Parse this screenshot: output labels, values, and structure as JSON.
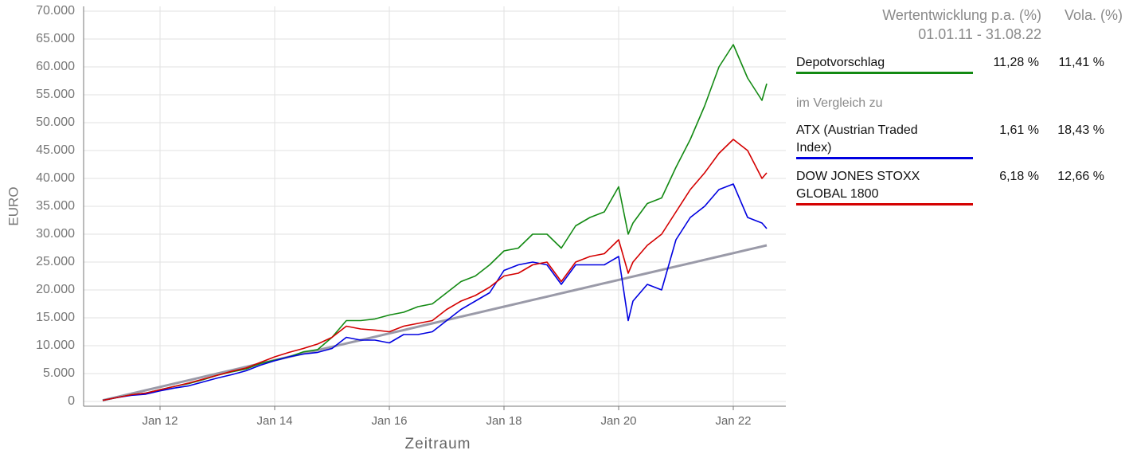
{
  "chart_data": {
    "type": "line",
    "y_label": "EURO",
    "x_label": "Zeitraum",
    "x": [
      "2011-01",
      "2011-04",
      "2011-07",
      "2011-10",
      "2012-01",
      "2012-04",
      "2012-07",
      "2012-10",
      "2013-01",
      "2013-04",
      "2013-07",
      "2013-10",
      "2014-01",
      "2014-04",
      "2014-07",
      "2014-10",
      "2015-01",
      "2015-04",
      "2015-07",
      "2015-10",
      "2016-01",
      "2016-04",
      "2016-07",
      "2016-10",
      "2017-01",
      "2017-04",
      "2017-07",
      "2017-10",
      "2018-01",
      "2018-04",
      "2018-07",
      "2018-10",
      "2019-01",
      "2019-04",
      "2019-07",
      "2019-10",
      "2020-01",
      "2020-03",
      "2020-04",
      "2020-07",
      "2020-10",
      "2021-01",
      "2021-04",
      "2021-07",
      "2021-10",
      "2022-01",
      "2022-04",
      "2022-07",
      "2022-08"
    ],
    "series": [
      {
        "color": "#9a9aa8",
        "values": [
          200,
          800,
          1400,
          2000,
          2600,
          3200,
          3800,
          4400,
          5000,
          5600,
          6200,
          6800,
          7400,
          8000,
          8600,
          9200,
          9800,
          10400,
          11000,
          11600,
          12200,
          12800,
          13400,
          14000,
          14600,
          15200,
          15800,
          16400,
          17000,
          17600,
          18200,
          18800,
          19400,
          20000,
          20600,
          21200,
          21800,
          22200,
          22400,
          23000,
          23600,
          24200,
          24800,
          25400,
          26000,
          26600,
          27200,
          27800,
          28000
        ]
      },
      {
        "name": "Depotvorschlag",
        "color": "#138a13",
        "values": [
          200,
          700,
          1200,
          1500,
          2100,
          2700,
          3200,
          3900,
          4700,
          5300,
          5800,
          6800,
          7400,
          8000,
          8900,
          9300,
          11500,
          14500,
          14500,
          14800,
          15500,
          16000,
          17000,
          17500,
          19500,
          21500,
          22500,
          24500,
          27000,
          27500,
          30000,
          30000,
          27500,
          31500,
          33000,
          34000,
          38500,
          30000,
          32000,
          35500,
          36500,
          42000,
          47000,
          53000,
          60000,
          64000,
          58000,
          54000,
          57000
        ]
      },
      {
        "name": "ATX (Austrian Traded Index)",
        "color": "#0000e0",
        "values": [
          200,
          700,
          1100,
          1300,
          1900,
          2400,
          2800,
          3500,
          4200,
          4800,
          5500,
          6500,
          7300,
          8000,
          8500,
          8800,
          9500,
          11500,
          11000,
          11000,
          10500,
          12000,
          12000,
          12500,
          14500,
          16500,
          18000,
          19500,
          23500,
          24500,
          25000,
          24500,
          21000,
          24500,
          24500,
          24500,
          26000,
          14500,
          18000,
          21000,
          20000,
          29000,
          33000,
          35000,
          38000,
          39000,
          33000,
          32000,
          31000
        ]
      },
      {
        "name": "DOW JONES STOXX GLOBAL 1800",
        "color": "#d40000",
        "values": [
          200,
          700,
          1200,
          1500,
          2100,
          2700,
          3300,
          4000,
          4700,
          5400,
          6000,
          7000,
          8000,
          8800,
          9500,
          10300,
          11500,
          13500,
          13000,
          12800,
          12500,
          13500,
          14000,
          14500,
          16500,
          18000,
          19000,
          20500,
          22500,
          23000,
          24500,
          25000,
          21500,
          25000,
          26000,
          26500,
          29000,
          23000,
          25000,
          28000,
          30000,
          34000,
          38000,
          41000,
          44500,
          47000,
          45000,
          40000,
          41000
        ]
      }
    ],
    "xlim": [
      "2010-09",
      "2022-12"
    ],
    "xticks": [
      {
        "value": "2012-01",
        "label": "Jan 12"
      },
      {
        "value": "2014-01",
        "label": "Jan 14"
      },
      {
        "value": "2016-01",
        "label": "Jan 16"
      },
      {
        "value": "2018-01",
        "label": "Jan 18"
      },
      {
        "value": "2020-01",
        "label": "Jan 20"
      },
      {
        "value": "2022-01",
        "label": "Jan 22"
      }
    ],
    "ylim": [
      0,
      70000
    ],
    "yticks": [
      0,
      {
        "value": 5000,
        "label": "5.000"
      },
      {
        "value": 10000,
        "label": "10.000"
      },
      {
        "value": 15000,
        "label": "15.000"
      },
      {
        "value": 20000,
        "label": "20.000"
      },
      {
        "value": 25000,
        "label": "25.000"
      },
      {
        "value": 30000,
        "label": "30.000"
      },
      {
        "value": 35000,
        "label": "35.000"
      },
      {
        "value": 40000,
        "label": "40.000"
      },
      {
        "value": 45000,
        "label": "45.000"
      },
      {
        "value": 50000,
        "label": "50.000"
      },
      {
        "value": 55000,
        "label": "55.000"
      },
      {
        "value": 60000,
        "label": "60.000"
      },
      {
        "value": 65000,
        "label": "65.000"
      },
      {
        "value": 70000,
        "label": "70.000"
      }
    ],
    "grid": true
  },
  "table": {
    "header_performance": "Wertentwicklung p.a. (%)",
    "header_vola": "Vola. (%)",
    "period": "01.01.11 - 31.08.22",
    "comparison_label": "im Vergleich zu",
    "rows": [
      {
        "performance": "11,28 %",
        "vola": "11,41 %"
      },
      {
        "performance": "1,61 %",
        "vola": "18,43 %"
      },
      {
        "performance": "6,18 %",
        "vola": "12,66 %"
      }
    ]
  }
}
